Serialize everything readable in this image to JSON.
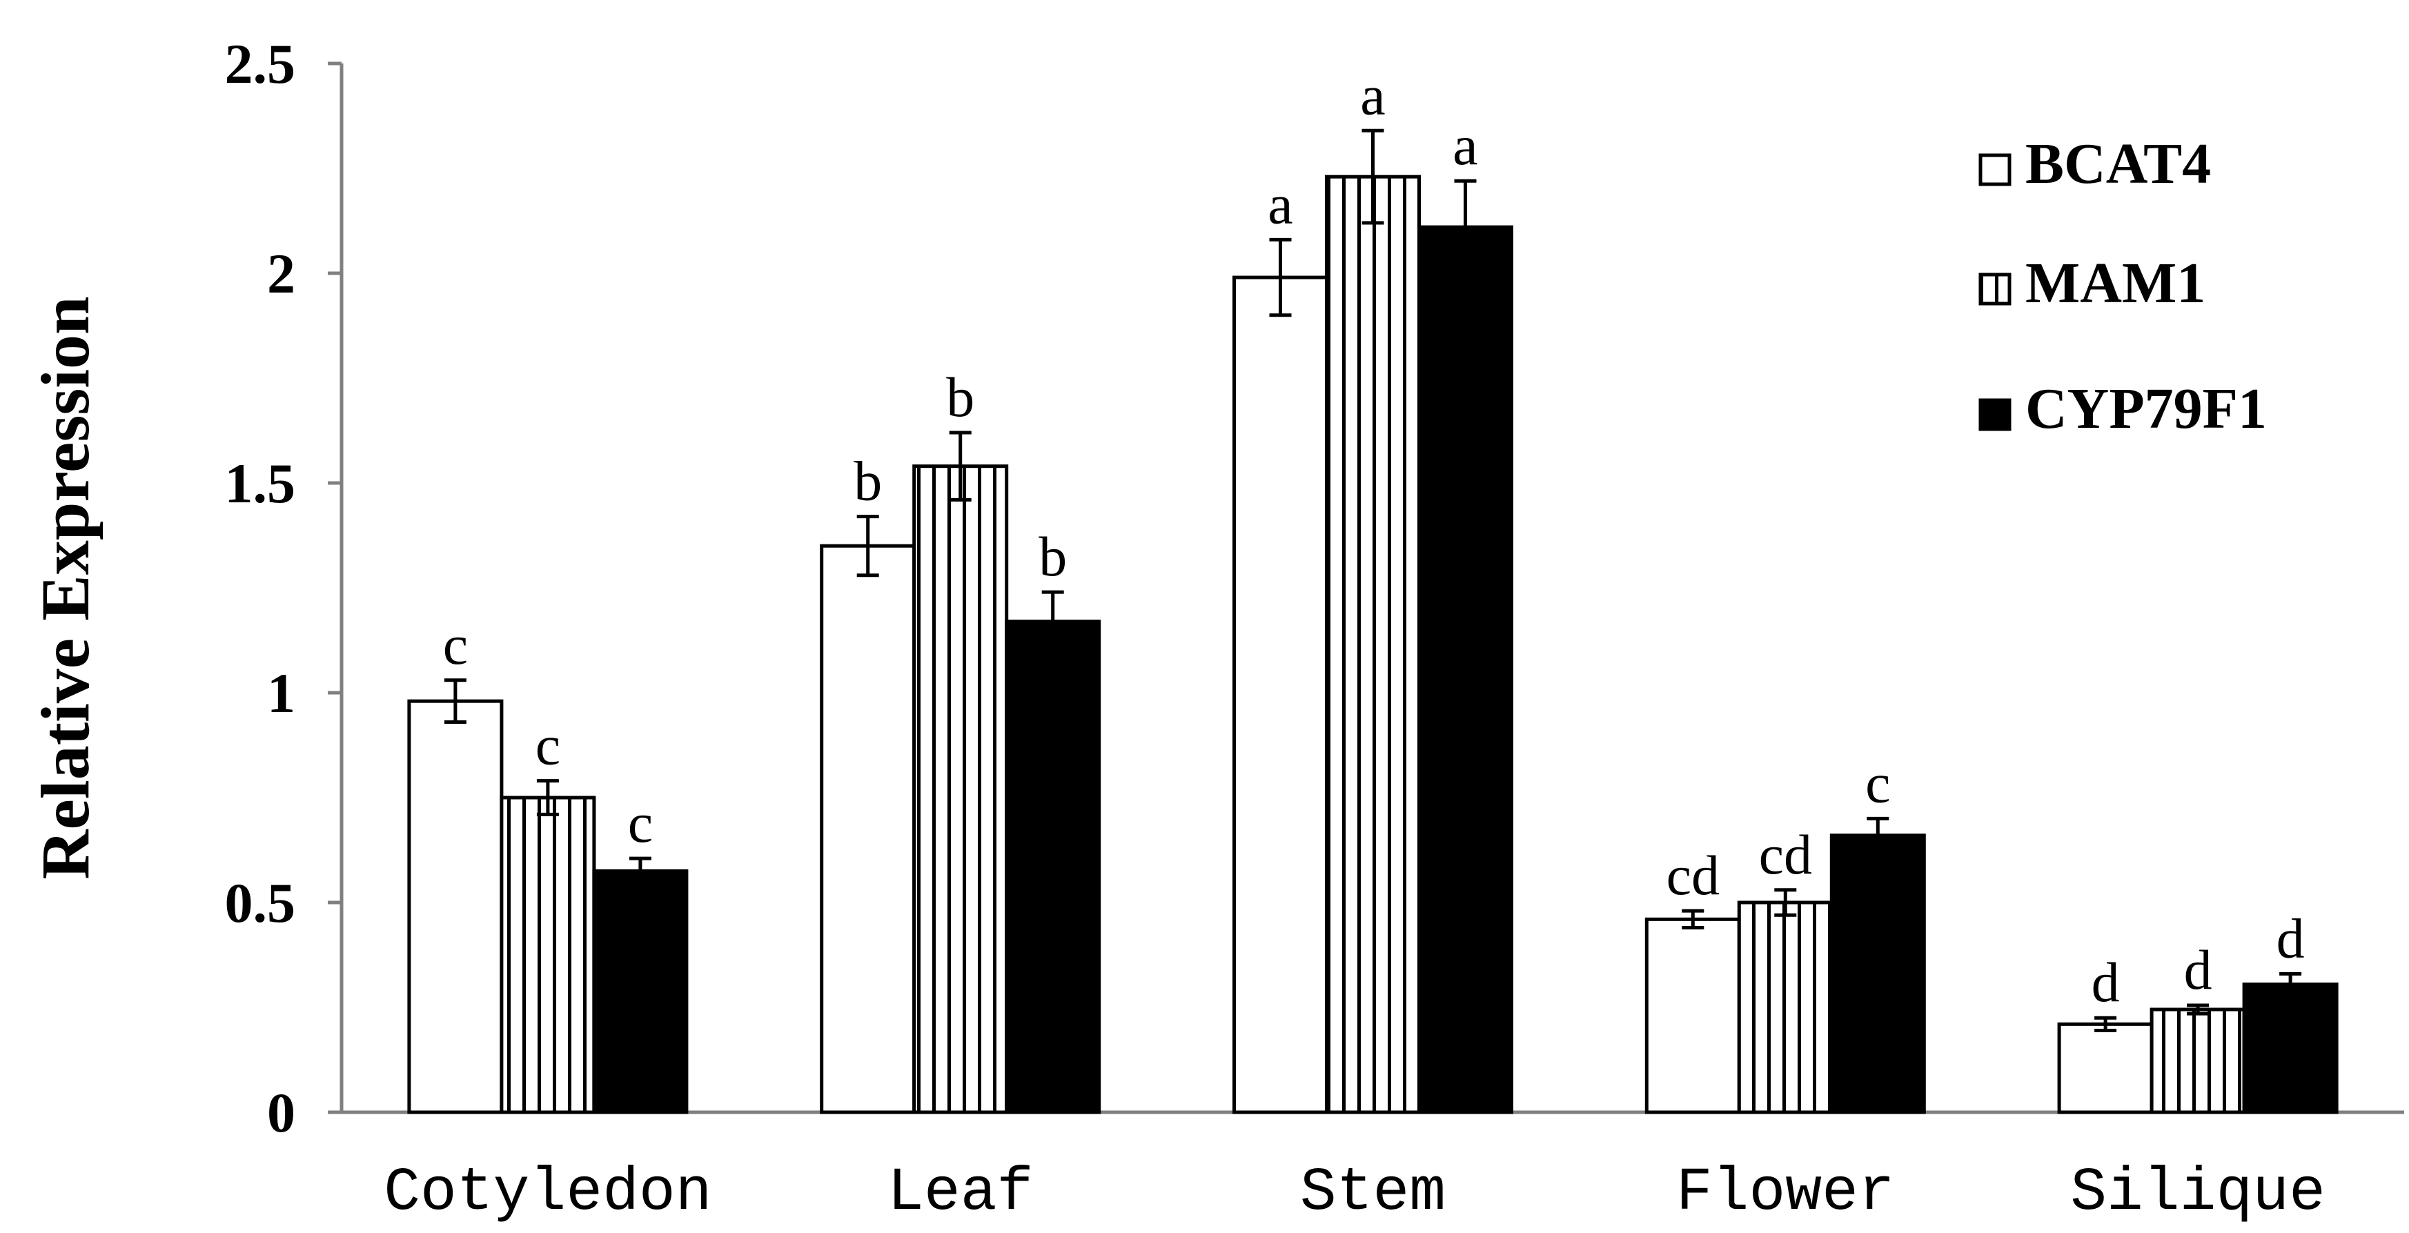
{
  "chart_data": {
    "type": "bar",
    "title": "",
    "xlabel": "",
    "ylabel": "Relative Expression",
    "ylim": [
      0,
      2.5
    ],
    "yticks": [
      "0",
      "0.5",
      "1",
      "1.5",
      "2",
      "2.5"
    ],
    "grid": false,
    "legend_position": "top-right",
    "categories": [
      "Cotyledon",
      "Leaf",
      "Stem",
      "Flower",
      "Silique"
    ],
    "series": [
      {
        "name": "BCAT4",
        "pattern": "white",
        "values": [
          0.98,
          1.35,
          1.99,
          0.46,
          0.21
        ],
        "errors": [
          0.05,
          0.07,
          0.09,
          0.02,
          0.015
        ],
        "labels": [
          "c",
          "b",
          "a",
          "cd",
          "d"
        ]
      },
      {
        "name": "MAM1",
        "pattern": "vertical-stripes",
        "values": [
          0.75,
          1.54,
          2.23,
          0.5,
          0.245
        ],
        "errors": [
          0.04,
          0.08,
          0.11,
          0.03,
          0.01
        ],
        "labels": [
          "c",
          "b",
          "a",
          "cd",
          "d"
        ]
      },
      {
        "name": "CYP79F1",
        "pattern": "black",
        "values": [
          0.575,
          1.17,
          2.11,
          0.66,
          0.305
        ],
        "errors": [
          0.03,
          0.07,
          0.11,
          0.04,
          0.025
        ],
        "labels": [
          "c",
          "b",
          "a",
          "c",
          "d"
        ]
      }
    ]
  },
  "colors": {
    "axis": "#808080",
    "bar_stroke": "#000000",
    "solid": "#000000",
    "open": "#ffffff"
  }
}
